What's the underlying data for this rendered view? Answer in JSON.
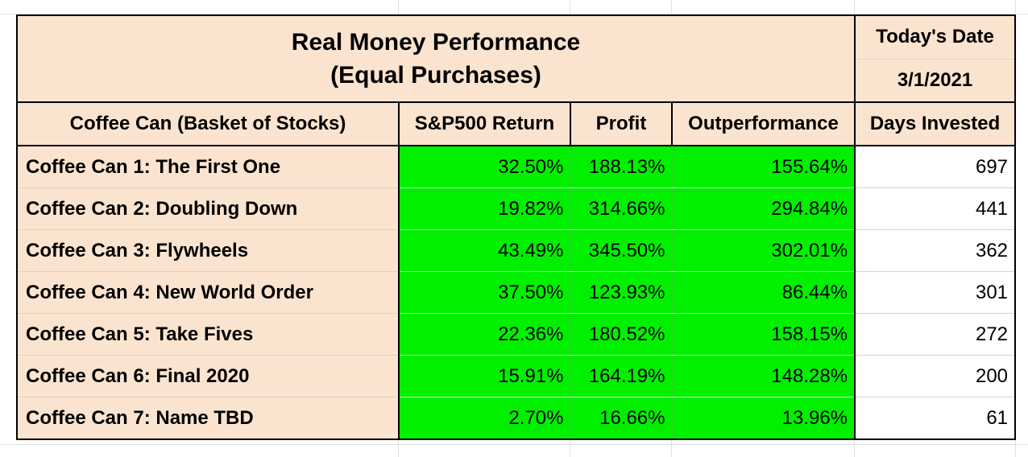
{
  "header": {
    "title_line1": "Real Money Performance",
    "title_line2": "(Equal Purchases)",
    "date_label": "Today's Date",
    "date_value": "3/1/2021"
  },
  "columns": [
    "Coffee Can (Basket of Stocks)",
    "S&P500 Return",
    "Profit",
    "Outperformance",
    "Days Invested"
  ],
  "rows": [
    {
      "name": "Coffee Can 1: The First One",
      "sp500": "32.50%",
      "profit": "188.13%",
      "outperformance": "155.64%",
      "days": "697"
    },
    {
      "name": "Coffee Can 2: Doubling Down",
      "sp500": "19.82%",
      "profit": "314.66%",
      "outperformance": "294.84%",
      "days": "441"
    },
    {
      "name": "Coffee Can 3: Flywheels",
      "sp500": "43.49%",
      "profit": "345.50%",
      "outperformance": "302.01%",
      "days": "362"
    },
    {
      "name": "Coffee Can 4: New World Order",
      "sp500": "37.50%",
      "profit": "123.93%",
      "outperformance": "86.44%",
      "days": "301"
    },
    {
      "name": "Coffee Can 5: Take Fives",
      "sp500": "22.36%",
      "profit": "180.52%",
      "outperformance": "158.15%",
      "days": "272"
    },
    {
      "name": "Coffee Can 6: Final 2020",
      "sp500": "15.91%",
      "profit": "164.19%",
      "outperformance": "148.28%",
      "days": "200"
    },
    {
      "name": "Coffee Can 7: Name TBD",
      "sp500": "2.70%",
      "profit": "16.66%",
      "outperformance": "13.96%",
      "days": "61"
    }
  ],
  "colors": {
    "header_fill": "#fbe4cf",
    "positive_fill": "#00f000",
    "border": "#000000"
  }
}
